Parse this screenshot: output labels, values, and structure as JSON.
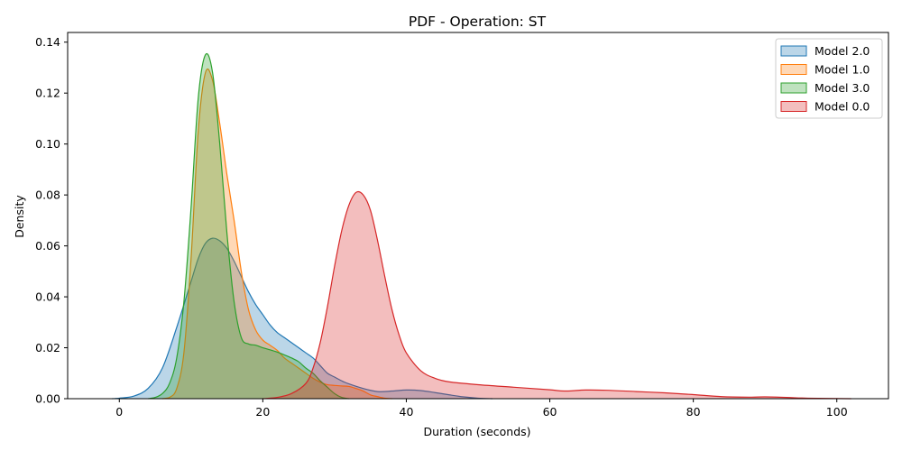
{
  "chart_data": {
    "type": "area",
    "title": "PDF - Operation: ST",
    "xlabel": "Duration (seconds)",
    "ylabel": "Density",
    "xlim": [
      -7.2,
      107.2
    ],
    "ylim": [
      0,
      0.1438
    ],
    "x_ticks": [
      0,
      20,
      40,
      60,
      80,
      100
    ],
    "y_ticks": [
      0.0,
      0.02,
      0.04,
      0.06,
      0.08,
      0.1,
      0.12,
      0.14
    ],
    "x_tick_labels": [
      "0",
      "20",
      "40",
      "60",
      "80",
      "100"
    ],
    "y_tick_labels": [
      "0.00",
      "0.02",
      "0.04",
      "0.06",
      "0.08",
      "0.10",
      "0.12",
      "0.14"
    ],
    "grid": false,
    "legend_position": "top-right",
    "series": [
      {
        "name": "Model 2.0",
        "color": "#1f77b4",
        "points": [
          [
            -1,
            0
          ],
          [
            0,
            0.0002
          ],
          [
            2,
            0.001
          ],
          [
            4,
            0.004
          ],
          [
            6,
            0.012
          ],
          [
            8,
            0.028
          ],
          [
            10,
            0.046
          ],
          [
            11,
            0.055
          ],
          [
            12,
            0.061
          ],
          [
            13,
            0.063
          ],
          [
            14,
            0.062
          ],
          [
            15,
            0.059
          ],
          [
            16,
            0.054
          ],
          [
            17,
            0.048
          ],
          [
            18,
            0.042
          ],
          [
            19,
            0.037
          ],
          [
            20,
            0.033
          ],
          [
            21,
            0.029
          ],
          [
            22,
            0.026
          ],
          [
            23,
            0.024
          ],
          [
            24,
            0.022
          ],
          [
            25,
            0.02
          ],
          [
            26,
            0.018
          ],
          [
            27,
            0.016
          ],
          [
            28,
            0.013
          ],
          [
            29,
            0.01
          ],
          [
            30,
            0.0085
          ],
          [
            31,
            0.007
          ],
          [
            32,
            0.0058
          ],
          [
            34,
            0.004
          ],
          [
            36,
            0.0028
          ],
          [
            38,
            0.003
          ],
          [
            40,
            0.0034
          ],
          [
            42,
            0.0032
          ],
          [
            44,
            0.0024
          ],
          [
            46,
            0.0015
          ],
          [
            48,
            0.0007
          ],
          [
            50,
            0.0002
          ],
          [
            52,
            0
          ]
        ]
      },
      {
        "name": "Model 1.0",
        "color": "#ff7f0e",
        "points": [
          [
            6,
            0
          ],
          [
            7,
            0.0005
          ],
          [
            8,
            0.004
          ],
          [
            9,
            0.018
          ],
          [
            10,
            0.055
          ],
          [
            11,
            0.105
          ],
          [
            12,
            0.128
          ],
          [
            13,
            0.125
          ],
          [
            14,
            0.108
          ],
          [
            15,
            0.088
          ],
          [
            16,
            0.07
          ],
          [
            17,
            0.05
          ],
          [
            18,
            0.035
          ],
          [
            19,
            0.027
          ],
          [
            20,
            0.023
          ],
          [
            21,
            0.021
          ],
          [
            22,
            0.019
          ],
          [
            23,
            0.016
          ],
          [
            24,
            0.014
          ],
          [
            25,
            0.012
          ],
          [
            26,
            0.01
          ],
          [
            27,
            0.008
          ],
          [
            28,
            0.0065
          ],
          [
            29,
            0.0055
          ],
          [
            30,
            0.0052
          ],
          [
            31,
            0.005
          ],
          [
            32,
            0.0048
          ],
          [
            33,
            0.004
          ],
          [
            34,
            0.003
          ],
          [
            35,
            0.0015
          ],
          [
            36,
            0.0008
          ],
          [
            37,
            0.0002
          ],
          [
            38,
            0
          ]
        ]
      },
      {
        "name": "Model 3.0",
        "color": "#2ca02c",
        "points": [
          [
            4,
            0
          ],
          [
            5,
            0.0005
          ],
          [
            6,
            0.002
          ],
          [
            7,
            0.006
          ],
          [
            8,
            0.016
          ],
          [
            9,
            0.038
          ],
          [
            10,
            0.075
          ],
          [
            11,
            0.118
          ],
          [
            12,
            0.135
          ],
          [
            13,
            0.128
          ],
          [
            14,
            0.1
          ],
          [
            15,
            0.065
          ],
          [
            16,
            0.038
          ],
          [
            17,
            0.024
          ],
          [
            18,
            0.0215
          ],
          [
            19,
            0.021
          ],
          [
            20,
            0.02
          ],
          [
            21,
            0.0192
          ],
          [
            22,
            0.0183
          ],
          [
            23,
            0.0172
          ],
          [
            24,
            0.016
          ],
          [
            25,
            0.0145
          ],
          [
            26,
            0.012
          ],
          [
            27,
            0.01
          ],
          [
            28,
            0.007
          ],
          [
            29,
            0.0045
          ],
          [
            30,
            0.002
          ],
          [
            31,
            0.0005
          ],
          [
            32,
            0
          ]
        ]
      },
      {
        "name": "Model 0.0",
        "color": "#d62728",
        "points": [
          [
            20,
            0
          ],
          [
            22,
            0.0005
          ],
          [
            24,
            0.002
          ],
          [
            26,
            0.006
          ],
          [
            27,
            0.012
          ],
          [
            28,
            0.022
          ],
          [
            29,
            0.036
          ],
          [
            30,
            0.052
          ],
          [
            31,
            0.066
          ],
          [
            32,
            0.076
          ],
          [
            33,
            0.081
          ],
          [
            34,
            0.08
          ],
          [
            35,
            0.074
          ],
          [
            36,
            0.062
          ],
          [
            37,
            0.048
          ],
          [
            38,
            0.035
          ],
          [
            39,
            0.025
          ],
          [
            40,
            0.018
          ],
          [
            42,
            0.011
          ],
          [
            44,
            0.008
          ],
          [
            46,
            0.0066
          ],
          [
            50,
            0.0055
          ],
          [
            55,
            0.0045
          ],
          [
            60,
            0.0035
          ],
          [
            62,
            0.003
          ],
          [
            65,
            0.0034
          ],
          [
            68,
            0.0033
          ],
          [
            72,
            0.0028
          ],
          [
            76,
            0.0023
          ],
          [
            80,
            0.0016
          ],
          [
            84,
            0.0008
          ],
          [
            88,
            0.0006
          ],
          [
            90,
            0.0007
          ],
          [
            93,
            0.0005
          ],
          [
            96,
            0.0002
          ],
          [
            102,
            0
          ]
        ]
      }
    ]
  }
}
